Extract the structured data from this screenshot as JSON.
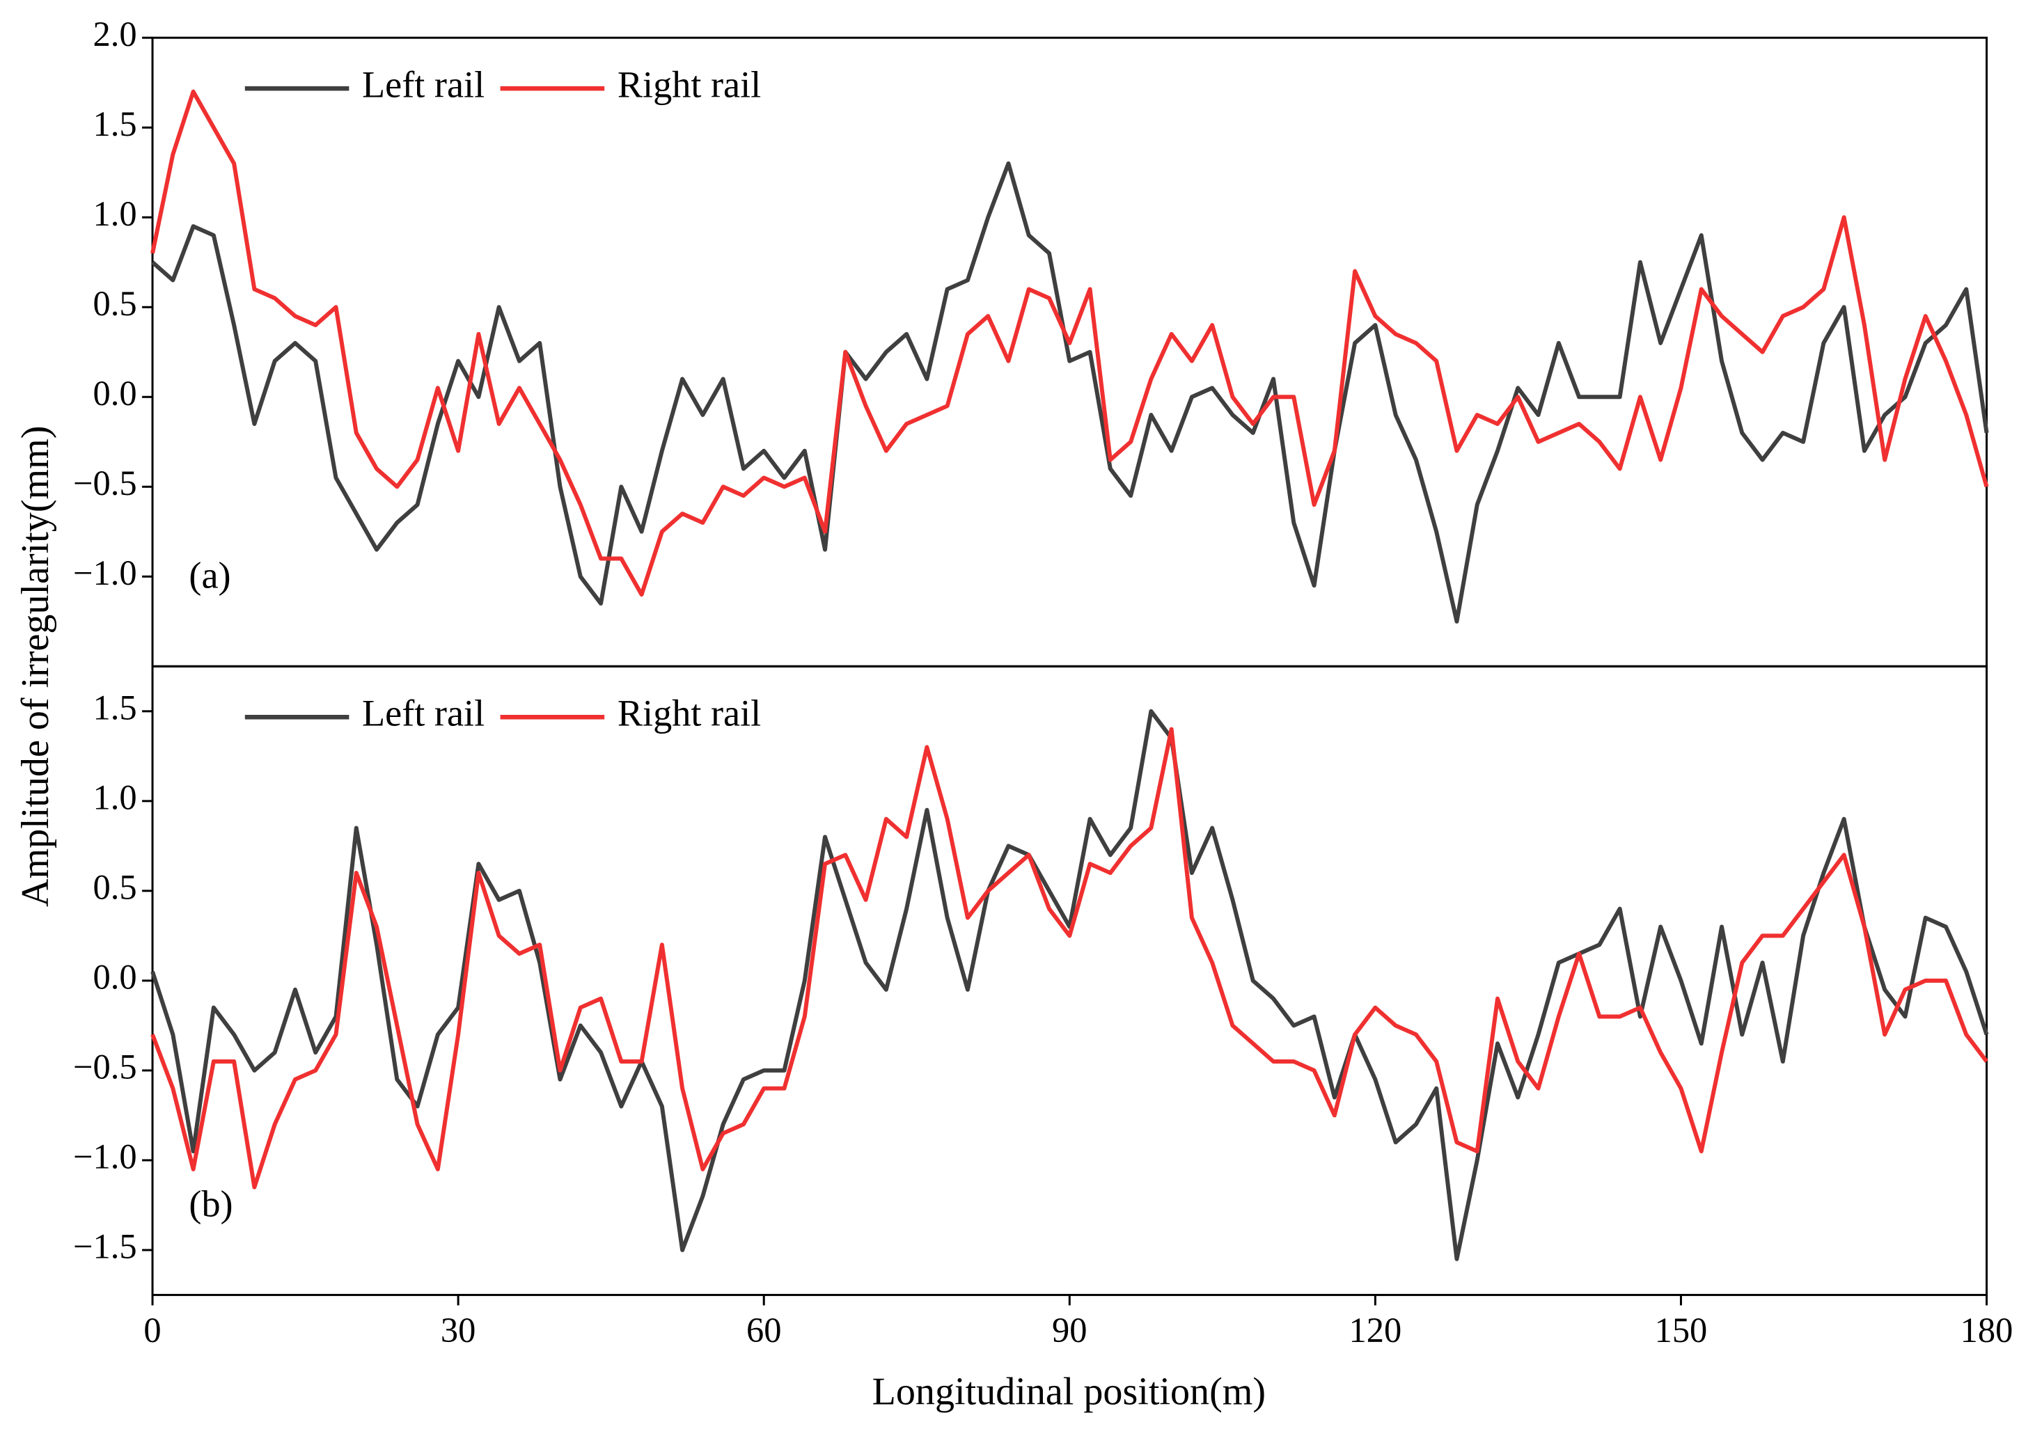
{
  "ylabel": "Amplitude of irregularity(mm)",
  "xlabel": "Longitudinal position(m)",
  "chart_data": [
    {
      "type": "line",
      "annotation": "(a)",
      "legend": "upper left",
      "x": [
        0,
        2,
        4,
        6,
        8,
        10,
        12,
        14,
        16,
        18,
        20,
        22,
        24,
        26,
        28,
        30,
        32,
        34,
        36,
        38,
        40,
        42,
        44,
        46,
        48,
        50,
        52,
        54,
        56,
        58,
        60,
        62,
        64,
        66,
        68,
        70,
        72,
        74,
        76,
        78,
        80,
        82,
        84,
        86,
        88,
        90,
        92,
        94,
        96,
        98,
        100,
        102,
        104,
        106,
        108,
        110,
        112,
        114,
        116,
        118,
        120,
        122,
        124,
        126,
        128,
        130,
        132,
        134,
        136,
        138,
        140,
        142,
        144,
        146,
        148,
        150,
        152,
        154,
        156,
        158,
        160,
        162,
        164,
        166,
        168,
        170,
        172,
        174,
        176,
        178,
        180
      ],
      "series": [
        {
          "name": "Left rail",
          "color": "#3f3f3f",
          "values": [
            0.75,
            0.65,
            0.95,
            0.9,
            0.4,
            -0.15,
            0.2,
            0.3,
            0.2,
            -0.45,
            -0.65,
            -0.85,
            -0.7,
            -0.6,
            -0.15,
            0.2,
            0.0,
            0.5,
            0.2,
            0.3,
            -0.5,
            -1.0,
            -1.15,
            -0.5,
            -0.75,
            -0.3,
            0.1,
            -0.1,
            0.1,
            -0.4,
            -0.3,
            -0.45,
            -0.3,
            -0.85,
            0.25,
            0.1,
            0.25,
            0.35,
            0.1,
            0.6,
            0.65,
            1.0,
            1.3,
            0.9,
            0.8,
            0.2,
            0.25,
            -0.4,
            -0.55,
            -0.1,
            -0.3,
            0.0,
            0.05,
            -0.1,
            -0.2,
            0.1,
            -0.7,
            -1.05,
            -0.3,
            0.3,
            0.4,
            -0.1,
            -0.35,
            -0.75,
            -1.25,
            -0.6,
            -0.3,
            0.05,
            -0.1,
            0.3,
            0.0,
            0.0,
            0.0,
            0.75,
            0.3,
            0.6,
            0.9,
            0.2,
            -0.2,
            -0.35,
            -0.2,
            -0.25,
            0.3,
            0.5,
            -0.3,
            -0.1,
            0.0,
            0.3,
            0.4,
            0.6,
            -0.2
          ]
        },
        {
          "name": "Right rail",
          "color": "#f03030",
          "values": [
            0.8,
            1.35,
            1.7,
            1.5,
            1.3,
            0.6,
            0.55,
            0.45,
            0.4,
            0.5,
            -0.2,
            -0.4,
            -0.5,
            -0.35,
            0.05,
            -0.3,
            0.35,
            -0.15,
            0.05,
            -0.15,
            -0.35,
            -0.6,
            -0.9,
            -0.9,
            -1.1,
            -0.75,
            -0.65,
            -0.7,
            -0.5,
            -0.55,
            -0.45,
            -0.5,
            -0.45,
            -0.75,
            0.25,
            -0.05,
            -0.3,
            -0.15,
            -0.1,
            -0.05,
            0.35,
            0.45,
            0.2,
            0.6,
            0.55,
            0.3,
            0.6,
            -0.35,
            -0.25,
            0.1,
            0.35,
            0.2,
            0.4,
            0.0,
            -0.15,
            0.0,
            0.0,
            -0.6,
            -0.3,
            0.7,
            0.45,
            0.35,
            0.3,
            0.2,
            -0.3,
            -0.1,
            -0.15,
            0.0,
            -0.25,
            -0.2,
            -0.15,
            -0.25,
            -0.4,
            0.0,
            -0.35,
            0.05,
            0.6,
            0.45,
            0.35,
            0.25,
            0.45,
            0.5,
            0.6,
            1.0,
            0.4,
            -0.35,
            0.1,
            0.45,
            0.2,
            -0.1,
            -0.5
          ]
        }
      ],
      "xlim": [
        0,
        180
      ],
      "ylim": [
        -1.5,
        2.0
      ],
      "yticks": [
        {
          "value": -1.0,
          "label": "−1.0"
        },
        {
          "value": -0.5,
          "label": "−0.5"
        },
        {
          "value": 0,
          "label": "0.0"
        },
        {
          "value": 0.5,
          "label": "0.5"
        },
        {
          "value": 1.0,
          "label": "1.0"
        },
        {
          "value": 1.5,
          "label": "1.5"
        },
        {
          "value": 2.0,
          "label": "2.0"
        }
      ]
    },
    {
      "type": "line",
      "annotation": "(b)",
      "legend": "upper left",
      "x": [
        0,
        2,
        4,
        6,
        8,
        10,
        12,
        14,
        16,
        18,
        20,
        22,
        24,
        26,
        28,
        30,
        32,
        34,
        36,
        38,
        40,
        42,
        44,
        46,
        48,
        50,
        52,
        54,
        56,
        58,
        60,
        62,
        64,
        66,
        68,
        70,
        72,
        74,
        76,
        78,
        80,
        82,
        84,
        86,
        88,
        90,
        92,
        94,
        96,
        98,
        100,
        102,
        104,
        106,
        108,
        110,
        112,
        114,
        116,
        118,
        120,
        122,
        124,
        126,
        128,
        130,
        132,
        134,
        136,
        138,
        140,
        142,
        144,
        146,
        148,
        150,
        152,
        154,
        156,
        158,
        160,
        162,
        164,
        166,
        168,
        170,
        172,
        174,
        176,
        178,
        180
      ],
      "series": [
        {
          "name": "Left rail",
          "color": "#3f3f3f",
          "values": [
            0.05,
            -0.3,
            -0.95,
            -0.15,
            -0.3,
            -0.5,
            -0.4,
            -0.05,
            -0.4,
            -0.2,
            0.85,
            0.2,
            -0.55,
            -0.7,
            -0.3,
            -0.15,
            0.65,
            0.45,
            0.5,
            0.1,
            -0.55,
            -0.25,
            -0.4,
            -0.7,
            -0.45,
            -0.7,
            -1.5,
            -1.2,
            -0.8,
            -0.55,
            -0.5,
            -0.5,
            0.0,
            0.8,
            0.45,
            0.1,
            -0.05,
            0.4,
            0.95,
            0.35,
            -0.05,
            0.5,
            0.75,
            0.7,
            0.5,
            0.3,
            0.9,
            0.7,
            0.85,
            1.5,
            1.35,
            0.6,
            0.85,
            0.45,
            0.0,
            -0.1,
            -0.25,
            -0.2,
            -0.65,
            -0.3,
            -0.55,
            -0.9,
            -0.8,
            -0.6,
            -1.55,
            -1.0,
            -0.35,
            -0.65,
            -0.3,
            0.1,
            0.15,
            0.2,
            0.4,
            -0.2,
            0.3,
            0.0,
            -0.35,
            0.3,
            -0.3,
            0.1,
            -0.45,
            0.25,
            0.6,
            0.9,
            0.3,
            -0.05,
            -0.2,
            0.35,
            0.3,
            0.05,
            -0.3
          ]
        },
        {
          "name": "Right rail",
          "color": "#f03030",
          "values": [
            -0.3,
            -0.6,
            -1.05,
            -0.45,
            -0.45,
            -1.15,
            -0.8,
            -0.55,
            -0.5,
            -0.3,
            0.6,
            0.3,
            -0.25,
            -0.8,
            -1.05,
            -0.3,
            0.6,
            0.25,
            0.15,
            0.2,
            -0.5,
            -0.15,
            -0.1,
            -0.45,
            -0.45,
            0.2,
            -0.6,
            -1.05,
            -0.85,
            -0.8,
            -0.6,
            -0.6,
            -0.2,
            0.65,
            0.7,
            0.45,
            0.9,
            0.8,
            1.3,
            0.9,
            0.35,
            0.5,
            0.6,
            0.7,
            0.4,
            0.25,
            0.65,
            0.6,
            0.75,
            0.85,
            1.4,
            0.35,
            0.1,
            -0.25,
            -0.35,
            -0.45,
            -0.45,
            -0.5,
            -0.75,
            -0.3,
            -0.15,
            -0.25,
            -0.3,
            -0.45,
            -0.9,
            -0.95,
            -0.1,
            -0.45,
            -0.6,
            -0.2,
            0.15,
            -0.2,
            -0.2,
            -0.15,
            -0.4,
            -0.6,
            -0.95,
            -0.4,
            0.1,
            0.25,
            0.25,
            0.4,
            0.55,
            0.7,
            0.3,
            -0.3,
            -0.05,
            0.0,
            0.0,
            -0.3,
            -0.45
          ]
        }
      ],
      "xlim": [
        0,
        180
      ],
      "ylim": [
        -1.75,
        1.75
      ],
      "xticks": [
        0,
        30,
        60,
        90,
        120,
        150,
        180
      ],
      "yticks": [
        {
          "value": -1.5,
          "label": "−1.5"
        },
        {
          "value": -1.0,
          "label": "−1.0"
        },
        {
          "value": -0.5,
          "label": "−0.5"
        },
        {
          "value": 0,
          "label": "0.0"
        },
        {
          "value": 0.5,
          "label": "0.5"
        },
        {
          "value": 1.0,
          "label": "1.0"
        },
        {
          "value": 1.5,
          "label": "1.5"
        }
      ]
    }
  ]
}
